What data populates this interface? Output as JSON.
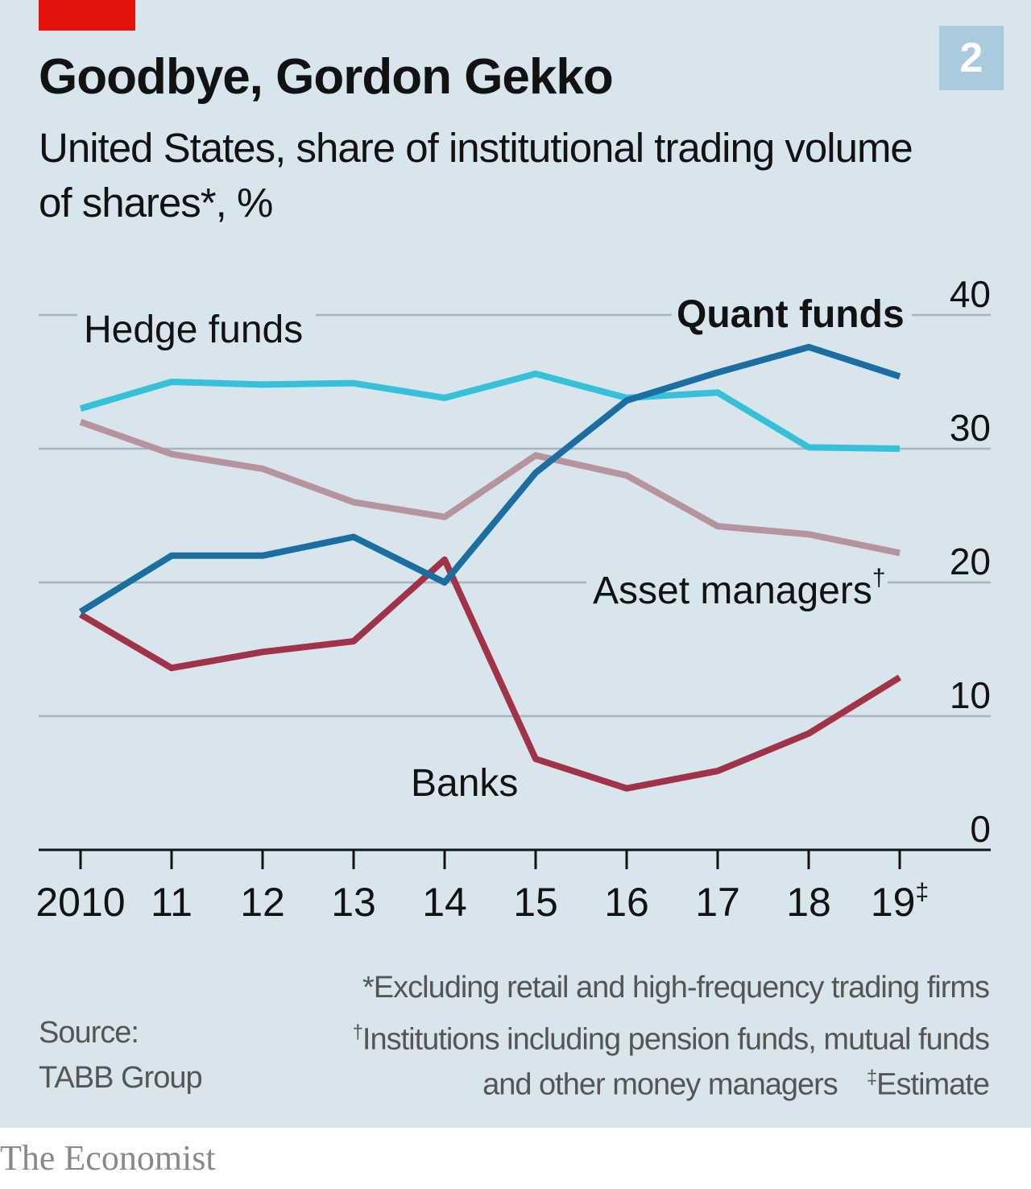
{
  "header": {
    "chart_number": "2",
    "title": "Goodbye, Gordon Gekko",
    "subtitle": "United States, share of institutional trading volume of shares*, %"
  },
  "colors": {
    "background": "#d8e5ec",
    "accent_red": "#e3120b",
    "number_box": "#a9cbdd",
    "hedge_funds": "#36c0d9",
    "quant_funds": "#1a6ea1",
    "asset_managers": "#b5949b",
    "banks": "#a13348",
    "grid": "#a8b4bb",
    "axis": "#121212"
  },
  "chart_data": {
    "type": "line",
    "x": [
      "2010",
      "11",
      "12",
      "13",
      "14",
      "15",
      "16",
      "17",
      "18",
      "19‡"
    ],
    "series": [
      {
        "name": "Hedge funds",
        "values": [
          33,
          35,
          34.8,
          34.9,
          33.8,
          35.6,
          33.8,
          34.2,
          30.1,
          30.0
        ]
      },
      {
        "name": "Quant funds",
        "values": [
          17.8,
          22,
          22,
          23.4,
          20.0,
          28.2,
          33.6,
          35.7,
          37.6,
          35.4
        ]
      },
      {
        "name": "Asset managers†",
        "values": [
          32,
          29.6,
          28.5,
          26.0,
          24.9,
          29.5,
          28.0,
          24.2,
          23.6,
          22.2
        ]
      },
      {
        "name": "Banks",
        "values": [
          17.6,
          13.6,
          14.8,
          15.6,
          21.7,
          6.8,
          4.6,
          5.9,
          8.7,
          12.9
        ]
      }
    ],
    "yticks": [
      "40",
      "30",
      "20",
      "10",
      "0"
    ],
    "ylim": [
      0,
      40
    ],
    "grid": true,
    "y_axis_side": "right"
  },
  "labels": {
    "hedge_funds": "Hedge funds",
    "quant_funds": "Quant funds",
    "asset_managers": "Asset managers",
    "asset_managers_mark": "†",
    "banks": "Banks"
  },
  "footnotes": {
    "source_line1": "Source:",
    "source_line2": "TABB Group",
    "note1": "*Excluding retail and high-frequency trading firms",
    "note2_mark": "†",
    "note2": "Institutions including pension funds, mutual funds",
    "note3": "and other money managers",
    "note3_mark": "‡",
    "note3_tail": "Estimate"
  },
  "footer": {
    "logo": "The Economist"
  }
}
